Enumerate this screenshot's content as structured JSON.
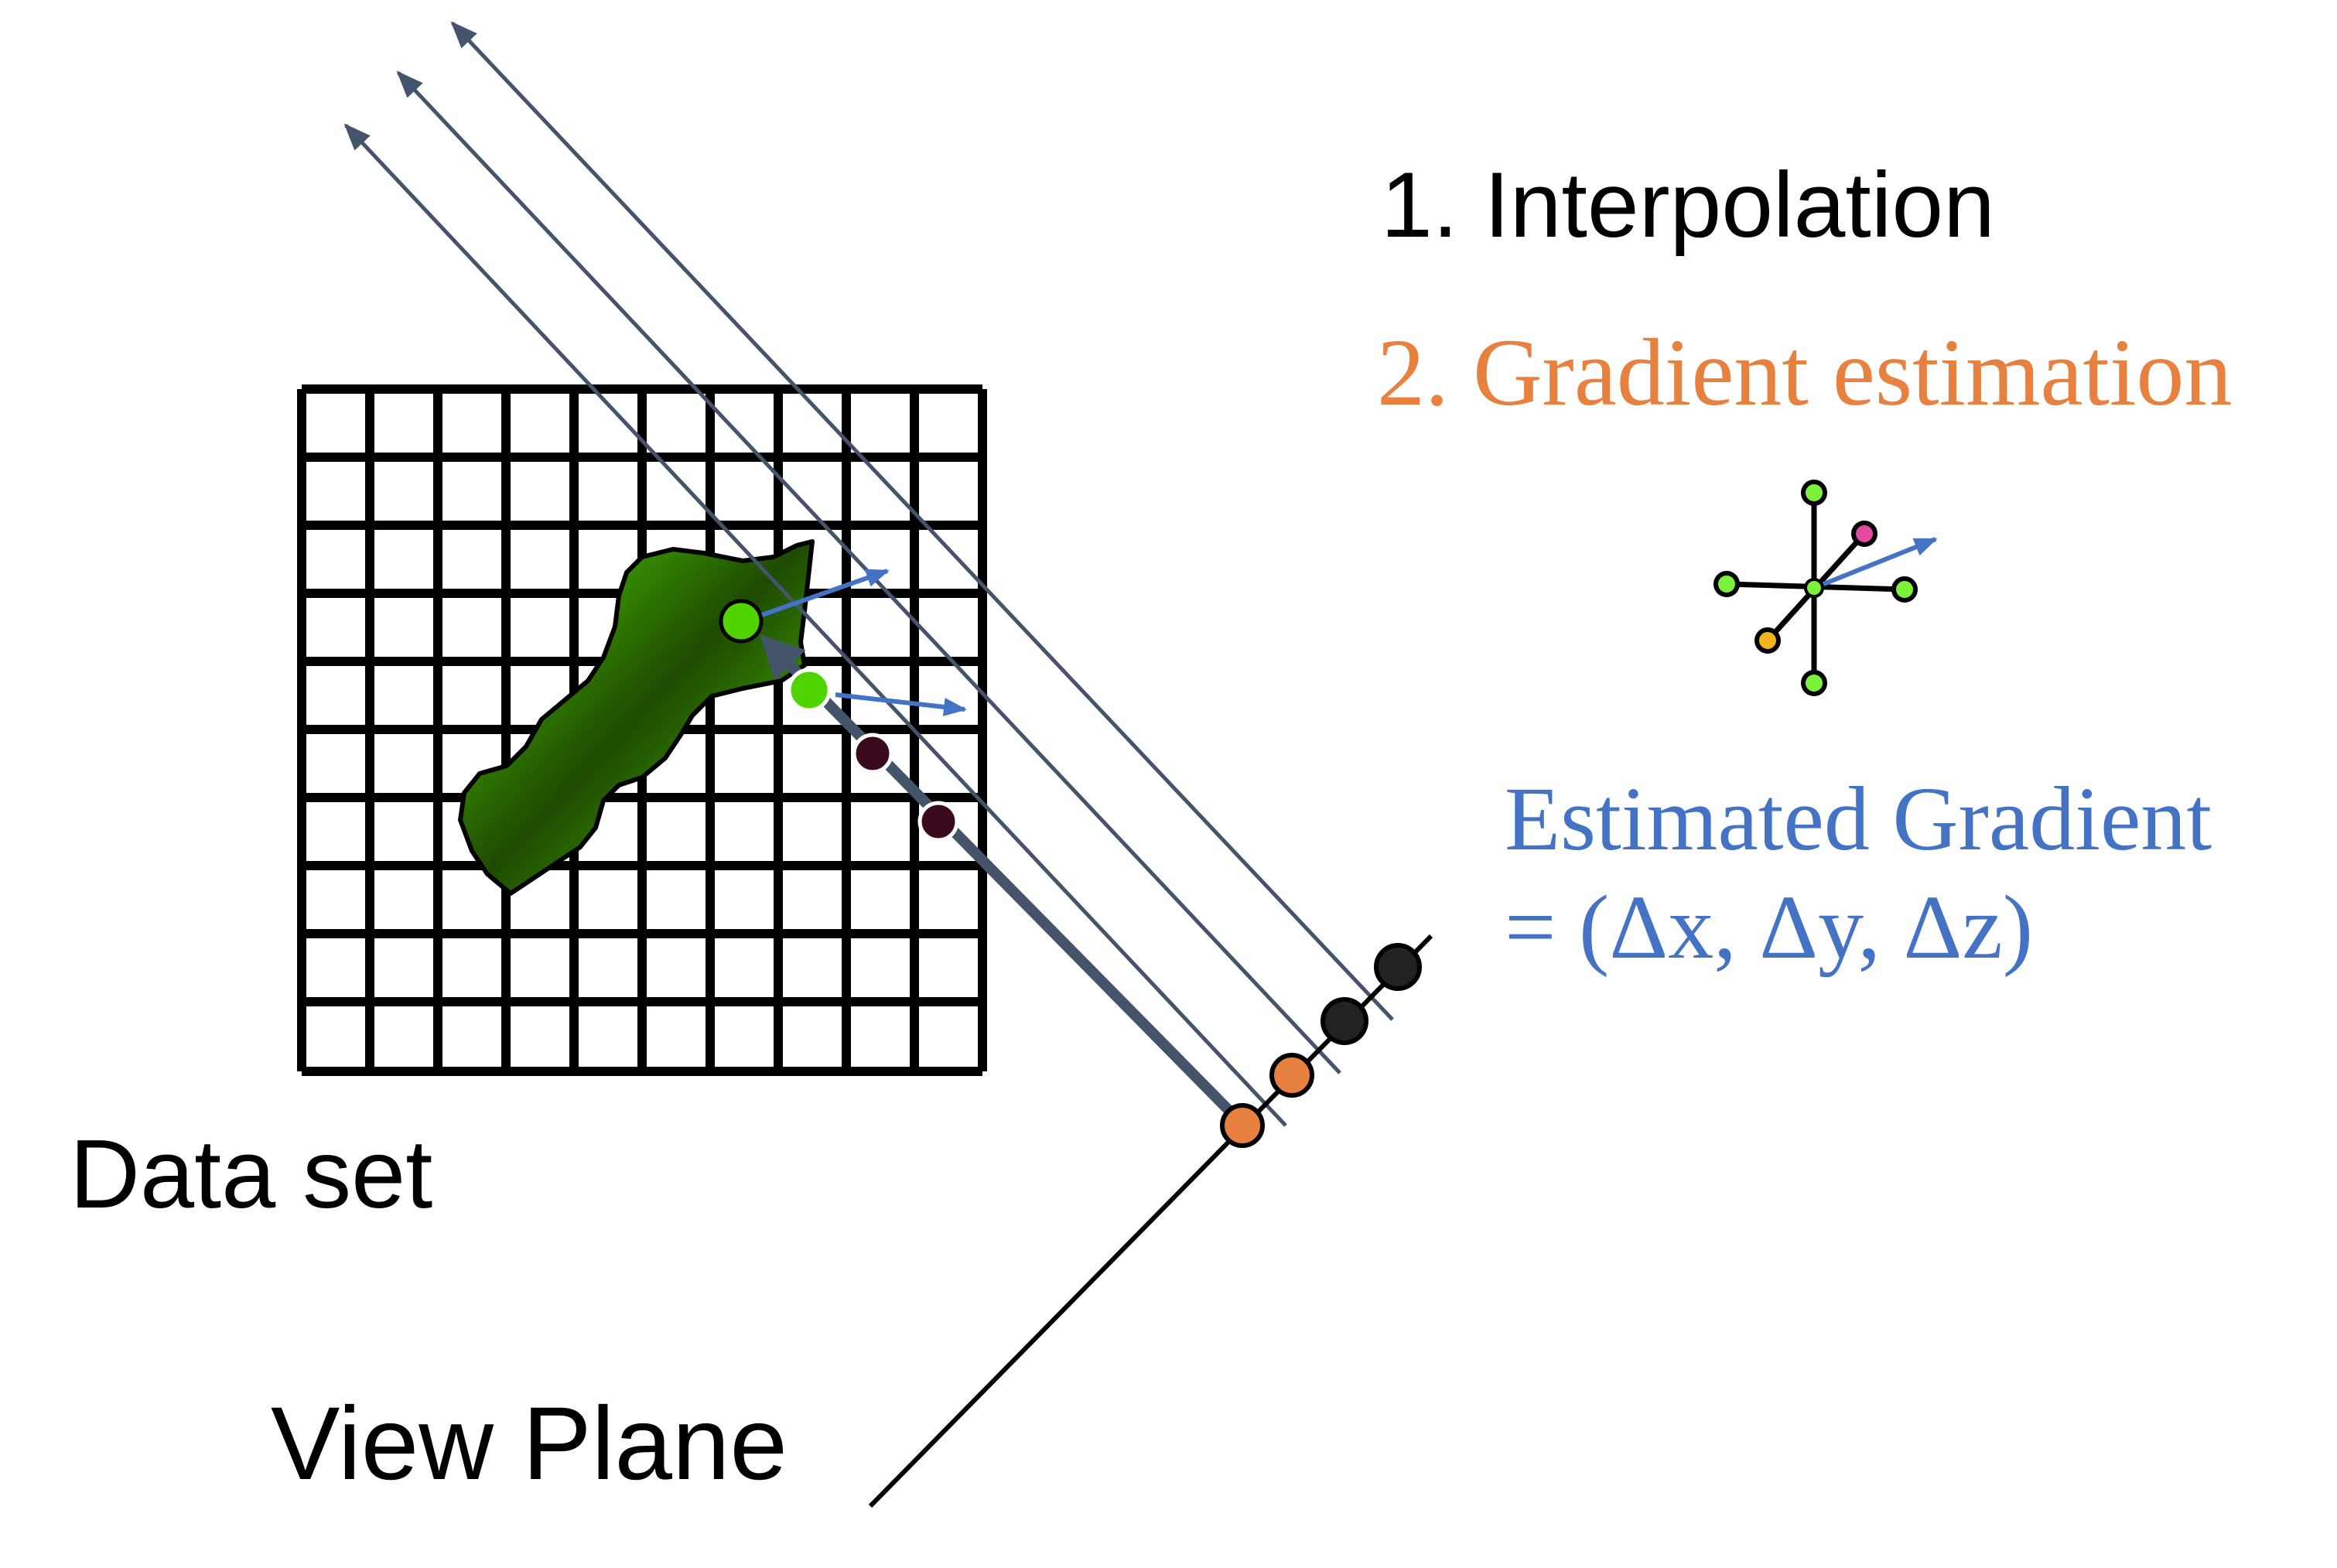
{
  "steps": {
    "step1": "1. Interpolation",
    "step2": "2. Gradient estimation"
  },
  "gradient": {
    "line1": "Estimated Gradient",
    "line2": "= (Δx, Δy, Δz)"
  },
  "labels": {
    "dataset": "Data set",
    "view_plane": "View Plane"
  },
  "colors": {
    "step1": "#000000",
    "step2": "#E8813F",
    "gradient_text": "#4472C4",
    "gradient_arrow": "#4472C4",
    "ray": "#44546A",
    "grid": "#000000",
    "blob_light": "#4FD400",
    "blob_dark": "#1E4A00",
    "sample_green": "#4FD400",
    "sample_dark": "#3A0A1E",
    "viewplane_orange": "#E8813F",
    "viewplane_dark": "#222222",
    "stencil_pink": "#E44AA0",
    "stencil_yellow": "#F2B51D",
    "stencil_green": "#7CF23A"
  }
}
